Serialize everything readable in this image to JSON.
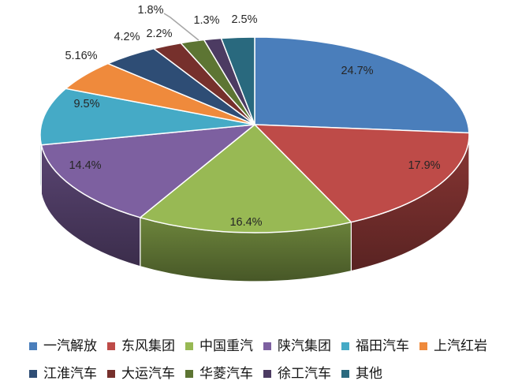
{
  "chart_data": {
    "type": "pie",
    "style": "3d",
    "title": "",
    "categories": [
      "一汽解放",
      "东风集团",
      "中国重汽",
      "陕汽集团",
      "福田汽车",
      "上汽红岩",
      "江淮汽车",
      "大运汽车",
      "华菱汽车",
      "徐工汽车",
      "其他"
    ],
    "values": [
      24.7,
      17.9,
      16.4,
      14.4,
      9.5,
      5.16,
      4.2,
      2.2,
      1.8,
      1.3,
      2.5
    ],
    "labels": [
      "24.7%",
      "17.9%",
      "16.4%",
      "14.4%",
      "9.5%",
      "5.16%",
      "4.2%",
      "2.2%",
      "1.8%",
      "1.3%",
      "2.5%"
    ],
    "colors": [
      "#4A7EBB",
      "#BE4B48",
      "#98B954",
      "#7D60A0",
      "#45AAC6",
      "#EF8A3C",
      "#2E4D75",
      "#76302C",
      "#5D7533",
      "#4C3B62",
      "#29697E"
    ],
    "label_color": "#262626",
    "leader_line_color": "#A6A6A6",
    "legend_position": "bottom",
    "legend_rows": [
      [
        0,
        1,
        2,
        3,
        4,
        5
      ],
      [
        6,
        7,
        8,
        9,
        10
      ]
    ],
    "background": "#FFFFFF"
  }
}
